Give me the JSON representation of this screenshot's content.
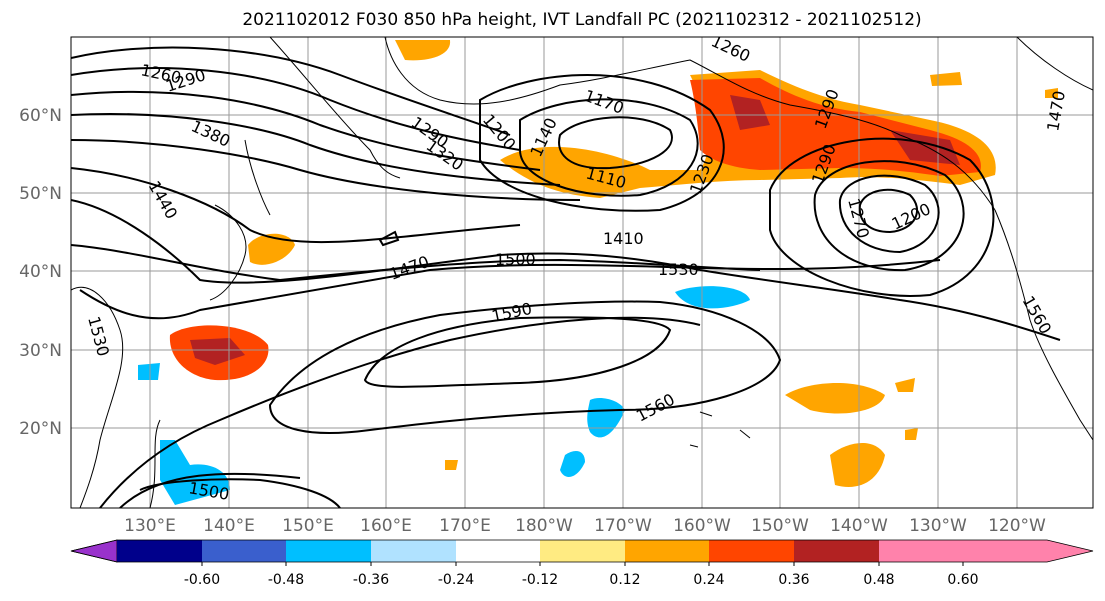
{
  "title": "2021102012 F030 850 hPa height, IVT Landfall PC (2021102312 - 2021102512)",
  "lat_labels": [
    "60°N",
    "50°N",
    "40°N",
    "30°N",
    "20°N"
  ],
  "lon_labels": [
    "130°E",
    "140°E",
    "150°E",
    "160°E",
    "170°E",
    "180°W",
    "170°W",
    "160°W",
    "150°W",
    "140°W",
    "130°W",
    "120°W"
  ],
  "contour_labels": [
    "1260",
    "1290",
    "1380",
    "1440",
    "1530",
    "1290",
    "1320",
    "1200",
    "1140",
    "1170",
    "1110",
    "1230",
    "1260",
    "1290",
    "1290",
    "1200",
    "1270",
    "1410",
    "1470",
    "1500",
    "1530",
    "1590",
    "1560",
    "1500",
    "1470",
    "1560"
  ],
  "colorbar": {
    "ticks": [
      "-0.60",
      "-0.48",
      "-0.36",
      "-0.24",
      "-0.12",
      "0.12",
      "0.24",
      "0.36",
      "0.48",
      "0.60"
    ],
    "colors": [
      "#9932cc",
      "#00008b",
      "#3a5fcd",
      "#00bfff",
      "#b0e2ff",
      "#ffffff",
      "#ffeb82",
      "#ffa500",
      "#ff4500",
      "#b22222",
      "#ff82ab"
    ]
  }
}
